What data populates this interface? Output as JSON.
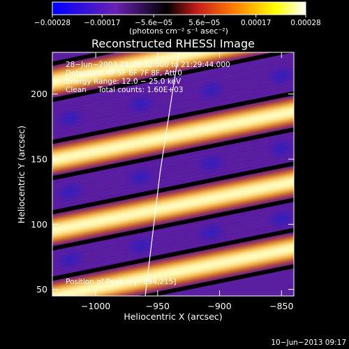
{
  "chart_data": {
    "type": "heatmap",
    "title": "Reconstructed RHESSI Image",
    "xlabel": "Heliocentric X (arcsec)",
    "ylabel": "Heliocentric Y (arcsec)",
    "xlim": [
      -1035,
      -840
    ],
    "ylim": [
      45,
      232
    ],
    "x_ticks": [
      {
        "value": -1000,
        "label": "−1000"
      },
      {
        "value": -950,
        "label": "−950"
      },
      {
        "value": -900,
        "label": "−900"
      },
      {
        "value": -850,
        "label": "−850"
      }
    ],
    "y_ticks": [
      {
        "value": 50,
        "label": "50"
      },
      {
        "value": 100,
        "label": "100"
      },
      {
        "value": 150,
        "label": "150"
      },
      {
        "value": 200,
        "label": "200"
      }
    ],
    "colorbar": {
      "range": [
        -0.00028,
        0.00028
      ],
      "tick_labels": [
        "−0.00028",
        "−0.00017",
        "−5.6e−05",
        "5.6e−05",
        "0.00017",
        "0.00028"
      ],
      "tick_values": [
        -0.00028,
        -0.00017,
        -5.6e-05,
        5.6e-05,
        0.00017,
        0.00028
      ],
      "unit_label": "(photons cm⁻² s⁻¹ asec⁻²)",
      "colors": [
        "#0000ff",
        "#6a22b0",
        "#000000",
        "#c41b1b",
        "#ff8000",
        "#ffff00",
        "#ffffff"
      ]
    },
    "annotations": [
      "28−Jun−2003 21:25:32.000 to 21:29:44.000",
      "Detectors: 4F 5F 6F 7F 8F, Att 0",
      "Energy Range: 12.0 − 25.0 keV",
      "Clean     Total counts: 1.60E+03"
    ],
    "peak_label": "Position of Peak = [−894,215]",
    "footer": "10−Jun−2013 09:17",
    "bands": [
      {
        "kind": "positive",
        "start": [
          -1030,
          207
        ],
        "end": [
          -845,
          250
        ],
        "peak": 0.00028
      },
      {
        "kind": "negative",
        "start": [
          -1030,
          176
        ],
        "end": [
          -845,
          218
        ],
        "peak": -8e-05
      },
      {
        "kind": "positive",
        "start": [
          -1030,
          147
        ],
        "end": [
          -845,
          189
        ],
        "peak": 0.00028
      },
      {
        "kind": "negative",
        "start": [
          -1030,
          120
        ],
        "end": [
          -845,
          162
        ],
        "peak": -8e-05
      },
      {
        "kind": "positive",
        "start": [
          -1030,
          93
        ],
        "end": [
          -845,
          135
        ],
        "peak": 0.00028
      },
      {
        "kind": "negative",
        "start": [
          -1030,
          68
        ],
        "end": [
          -845,
          108
        ],
        "peak": -8e-05
      },
      {
        "kind": "positive",
        "start": [
          -1030,
          42
        ],
        "end": [
          -845,
          84
        ],
        "peak": 0.00028
      }
    ],
    "limb": [
      [
        -933,
        232
      ],
      [
        -948,
        140
      ],
      [
        -960,
        45
      ]
    ],
    "grid": false
  }
}
